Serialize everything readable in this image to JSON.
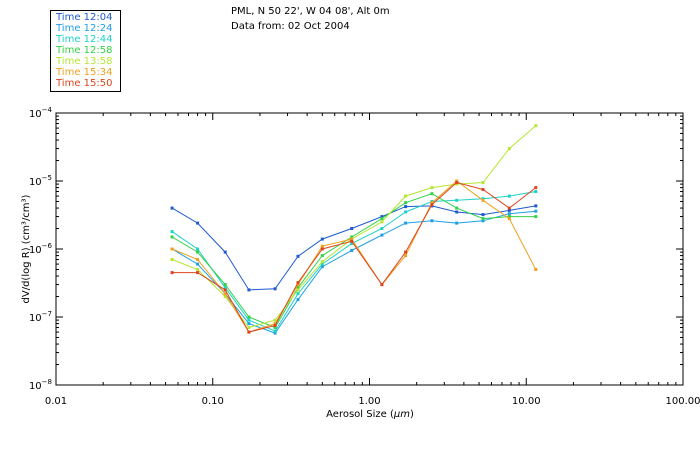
{
  "header": {
    "location": "PML, N 50 22', W 04 08', Alt 0m",
    "date": "Data from: 02 Oct 2004"
  },
  "chart_data": {
    "type": "line",
    "title": "PML, N 50 22', W 04 08', Alt 0m",
    "subtitle": "Data from: 02 Oct 2004",
    "xlabel_prefix": "Aerosol Size (",
    "xlabel_unit": "μm",
    "xlabel_suffix": ")",
    "ylabel": "dV/d(log R) (cm³/cm³)",
    "x_scale": "log",
    "y_scale": "log",
    "xlim": [
      0.01,
      100
    ],
    "ylim": [
      1e-08,
      0.0001
    ],
    "x_ticks": [
      {
        "value": 0.01,
        "label": "0.01"
      },
      {
        "value": 0.1,
        "label": "0.10"
      },
      {
        "value": 1,
        "label": "1.00"
      },
      {
        "value": 10,
        "label": "10.00"
      },
      {
        "value": 100,
        "label": "100.00"
      }
    ],
    "y_ticks": [
      {
        "value": 1e-08,
        "mantissa": "10",
        "exponent": "−8"
      },
      {
        "value": 1e-07,
        "mantissa": "10",
        "exponent": "−7"
      },
      {
        "value": 1e-06,
        "mantissa": "10",
        "exponent": "−6"
      },
      {
        "value": 1e-05,
        "mantissa": "10",
        "exponent": "−5"
      },
      {
        "value": 0.0001,
        "mantissa": "10",
        "exponent": "−4"
      }
    ],
    "x": [
      0.055,
      0.08,
      0.12,
      0.17,
      0.25,
      0.35,
      0.5,
      0.77,
      1.2,
      1.7,
      2.5,
      3.6,
      5.3,
      7.8,
      11.5
    ],
    "legend_position": "top-left",
    "series": [
      {
        "name": "Time 12:04",
        "color": "#1e5ad2",
        "values": [
          4e-06,
          2.4e-06,
          9e-07,
          2.5e-07,
          2.6e-07,
          7.8e-07,
          1.4e-06,
          2e-06,
          3e-06,
          4.2e-06,
          4.3e-06,
          3.5e-06,
          3.2e-06,
          3.7e-06,
          4.3e-06
        ]
      },
      {
        "name": "Time 12:24",
        "color": "#1ea0e6",
        "values": [
          1e-06,
          6e-07,
          2.2e-07,
          8e-08,
          5.8e-08,
          1.8e-07,
          5.5e-07,
          9.5e-07,
          1.6e-06,
          2.4e-06,
          2.6e-06,
          2.4e-06,
          2.6e-06,
          3.3e-06,
          3.6e-06
        ]
      },
      {
        "name": "Time 12:44",
        "color": "#1ed2c8",
        "values": [
          1.8e-06,
          1e-06,
          2.7e-07,
          9e-08,
          6.2e-08,
          2.2e-07,
          6e-07,
          1.2e-06,
          2e-06,
          3.5e-06,
          5e-06,
          5.2e-06,
          5.5e-06,
          6e-06,
          7e-06
        ]
      },
      {
        "name": "Time 12:58",
        "color": "#32d246",
        "values": [
          1.5e-06,
          9e-07,
          3e-07,
          1e-07,
          7e-08,
          2.7e-07,
          8e-07,
          1.5e-06,
          2.8e-06,
          4.8e-06,
          6.5e-06,
          4e-06,
          2.8e-06,
          3e-06,
          3e-06
        ]
      },
      {
        "name": "Time 13:58",
        "color": "#b4e632",
        "values": [
          7e-07,
          5e-07,
          2e-07,
          7e-08,
          9e-08,
          2.5e-07,
          6.5e-07,
          1.4e-06,
          2.5e-06,
          6e-06,
          8e-06,
          9e-06,
          9.5e-06,
          3e-05,
          6.5e-05
        ]
      },
      {
        "name": "Time 15:34",
        "color": "#f0a01e",
        "values": [
          1e-06,
          7e-07,
          2.2e-07,
          6e-08,
          8e-08,
          3e-07,
          1.1e-06,
          1.4e-06,
          3e-07,
          8e-07,
          4.8e-06,
          1e-05,
          5.2e-06,
          2.8e-06,
          5e-07
        ]
      },
      {
        "name": "Time 15:50",
        "color": "#dc461e",
        "values": [
          4.5e-07,
          4.5e-07,
          2.5e-07,
          6e-08,
          7.5e-08,
          3.2e-07,
          1e-06,
          1.3e-06,
          3e-07,
          9e-07,
          4.5e-06,
          9.5e-06,
          7.5e-06,
          4e-06,
          8e-06
        ]
      }
    ]
  }
}
